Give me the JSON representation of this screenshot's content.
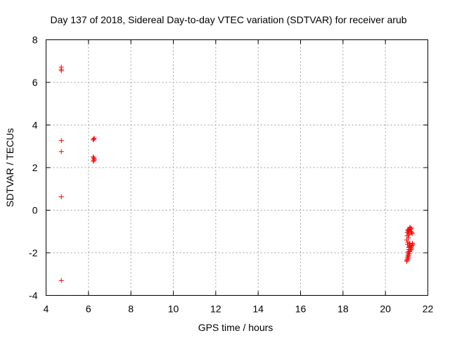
{
  "chart_data": {
    "type": "scatter",
    "title": "Day 137 of 2018, Sidereal Day-to-day VTEC variation (SDTVAR) for receiver arub",
    "xlabel": "GPS time / hours",
    "ylabel": "SDTVAR / TECUs",
    "xlim": [
      4,
      22
    ],
    "ylim": [
      -4,
      8
    ],
    "xticks": [
      4,
      6,
      8,
      10,
      12,
      14,
      16,
      18,
      20,
      22
    ],
    "yticks": [
      -4,
      -2,
      0,
      2,
      4,
      6,
      8
    ],
    "grid": true,
    "marker": "+",
    "color": "#ff0000",
    "series": [
      {
        "name": "arub",
        "points": [
          [
            4.72,
            6.72
          ],
          [
            4.72,
            6.62
          ],
          [
            4.72,
            6.55
          ],
          [
            4.72,
            3.27
          ],
          [
            4.72,
            2.75
          ],
          [
            4.72,
            0.63
          ],
          [
            4.72,
            -3.3
          ],
          [
            6.22,
            3.3
          ],
          [
            6.27,
            3.38
          ],
          [
            6.25,
            3.35
          ],
          [
            6.22,
            2.5
          ],
          [
            6.25,
            2.45
          ],
          [
            6.27,
            2.4
          ],
          [
            6.22,
            2.3
          ],
          [
            6.27,
            2.35
          ],
          [
            21.0,
            -2.4
          ],
          [
            21.02,
            -2.3
          ],
          [
            21.03,
            -2.2
          ],
          [
            21.05,
            -2.1
          ],
          [
            21.06,
            -2.0
          ],
          [
            21.08,
            -1.95
          ],
          [
            21.09,
            -1.85
          ],
          [
            21.1,
            -1.75
          ],
          [
            21.12,
            -1.7
          ],
          [
            21.13,
            -1.6
          ],
          [
            21.15,
            -1.55
          ],
          [
            21.16,
            -1.65
          ],
          [
            21.18,
            -1.75
          ],
          [
            21.2,
            -1.85
          ],
          [
            21.22,
            -1.8
          ],
          [
            21.23,
            -1.7
          ],
          [
            21.25,
            -1.65
          ],
          [
            21.27,
            -1.55
          ],
          [
            21.28,
            -1.6
          ],
          [
            21.0,
            -1.4
          ],
          [
            21.02,
            -1.2
          ],
          [
            21.03,
            -1.05
          ],
          [
            21.05,
            -0.95
          ],
          [
            21.07,
            -0.9
          ],
          [
            21.09,
            -1.0
          ],
          [
            21.1,
            -1.1
          ],
          [
            21.12,
            -0.95
          ],
          [
            21.14,
            -0.85
          ],
          [
            21.16,
            -0.8
          ],
          [
            21.18,
            -0.9
          ],
          [
            21.2,
            -1.0
          ],
          [
            21.22,
            -0.85
          ],
          [
            21.24,
            -1.05
          ],
          [
            21.26,
            -1.1
          ],
          [
            21.08,
            -2.25
          ],
          [
            21.1,
            -2.15
          ],
          [
            21.12,
            -2.05
          ],
          [
            21.14,
            -1.95
          ],
          [
            21.16,
            -1.9
          ],
          [
            21.02,
            -2.35
          ],
          [
            21.04,
            -1.6
          ],
          [
            21.06,
            -1.5
          ],
          [
            21.08,
            -1.3
          ],
          [
            21.11,
            -1.15
          ]
        ]
      }
    ]
  }
}
